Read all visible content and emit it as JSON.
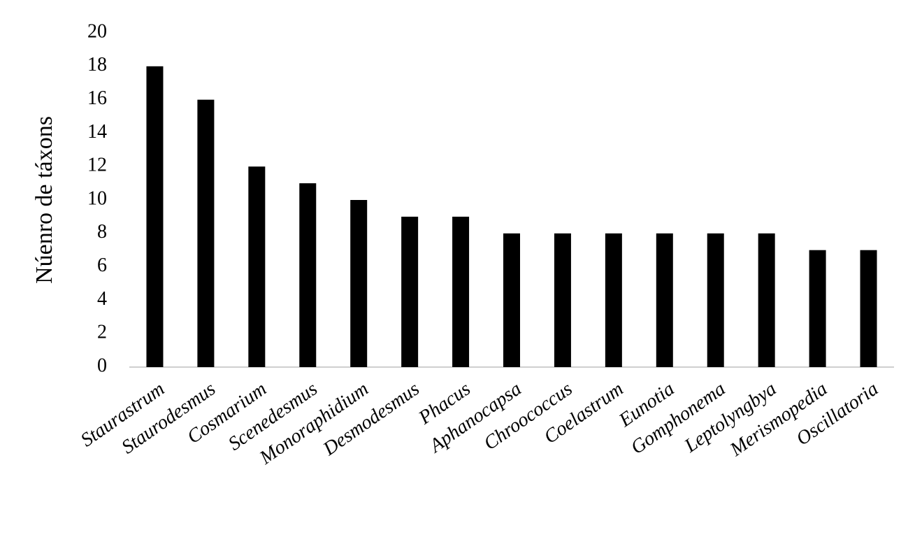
{
  "chart_data": {
    "type": "bar",
    "y_label": "Núenro de táxons",
    "categories": [
      "Staurastrum",
      "Staurodesmus",
      "Cosmarium",
      "Scenedesmus",
      "Monoraphidium",
      "Desmodesmus",
      "Phacus",
      "Aphanocapsa",
      "Chroococcus",
      "Coelastrum",
      "Eunotia",
      "Gomphonema",
      "Leptolyngbya",
      "Merismopedia",
      "Oscillatoria"
    ],
    "values": [
      18,
      16,
      12,
      11,
      10,
      9,
      9,
      8,
      8,
      8,
      8,
      8,
      8,
      7,
      7
    ],
    "color": "#000000",
    "ylim": [
      0,
      20
    ],
    "yticks": [
      0,
      2,
      4,
      6,
      8,
      10,
      12,
      14,
      16,
      18,
      20
    ],
    "grid": false
  }
}
